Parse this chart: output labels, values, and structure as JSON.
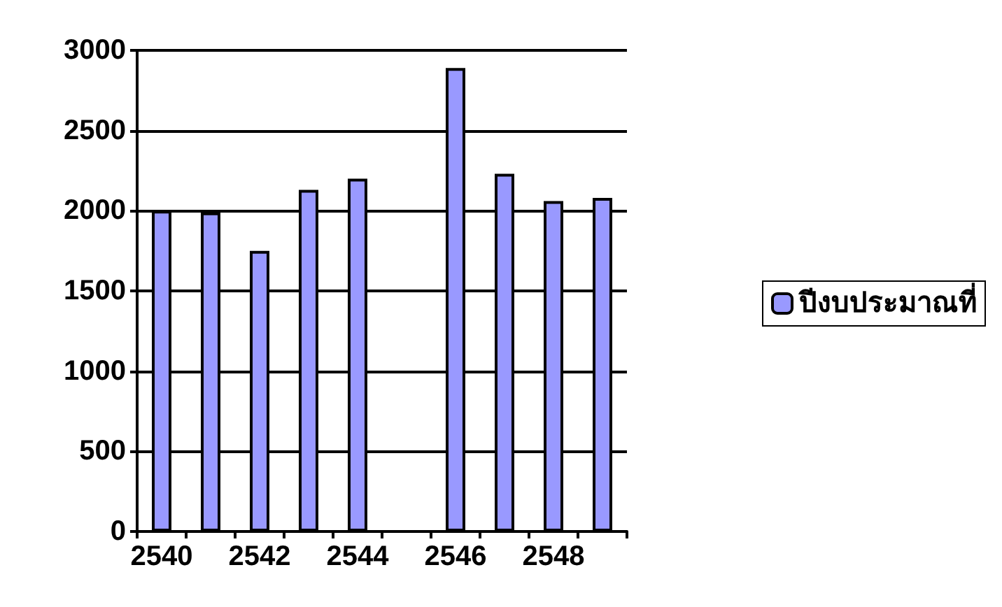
{
  "chart_data": {
    "type": "bar",
    "categories": [
      "2540",
      null,
      "2542",
      null,
      "2544",
      null,
      "2546",
      null,
      "2548",
      null
    ],
    "series": [
      {
        "name": "ปีงบประมาณที่",
        "color": "#9999ff",
        "values": [
          2000,
          1990,
          1750,
          2130,
          2200,
          null,
          2890,
          2230,
          2060,
          2080
        ]
      }
    ],
    "ylim": [
      0,
      3000
    ],
    "yticks": [
      0,
      500,
      1000,
      1500,
      2000,
      2500,
      3000
    ],
    "grid": "y",
    "legend": "right"
  }
}
